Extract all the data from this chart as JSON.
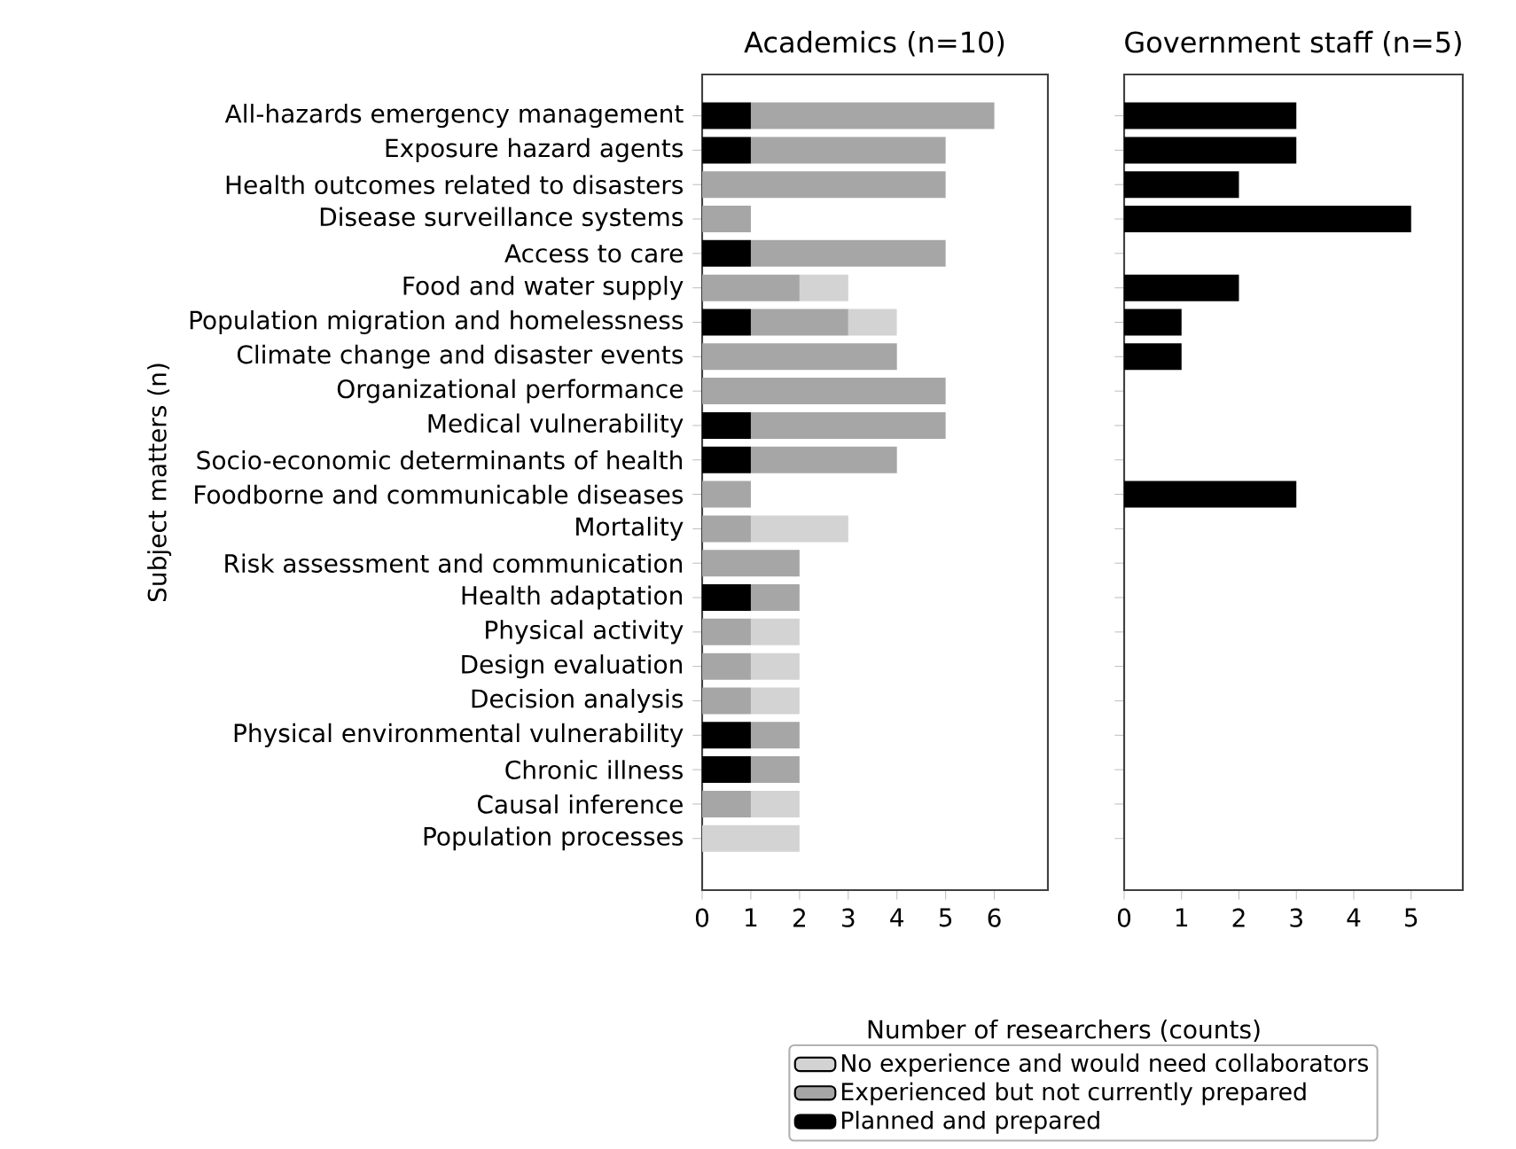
{
  "chart_data": [
    {
      "type": "bar",
      "orientation": "horizontal",
      "stacked": true,
      "title": "Academics (n=10)",
      "xlabel": "Number of researchers (counts)",
      "ylabel": "Subject matters (n)",
      "categories": [
        "All-hazards emergency management",
        "Exposure hazard agents",
        "Health outcomes related to disasters",
        "Disease surveillance systems",
        "Access to care",
        "Food and water supply",
        "Population migration and homelessness",
        "Climate change and disaster events",
        "Organizational performance",
        "Medical vulnerability",
        "Socio-economic determinants of health",
        "Foodborne and communicable diseases",
        "Mortality",
        "Risk assessment and communication",
        "Health adaptation",
        "Physical activity",
        "Design evaluation",
        "Decision analysis",
        "Physical environmental vulnerability",
        "Chronic illness",
        "Causal inference",
        "Population processes"
      ],
      "series": [
        {
          "name": "Planned and prepared",
          "color": "#000000",
          "values": [
            1,
            1,
            0,
            0,
            1,
            0,
            1,
            0,
            0,
            1,
            1,
            0,
            0,
            0,
            1,
            0,
            0,
            0,
            1,
            1,
            0,
            0
          ]
        },
        {
          "name": "Experienced but not currently prepared",
          "color": "#a6a6a6",
          "values": [
            5,
            4,
            5,
            1,
            4,
            2,
            2,
            4,
            5,
            4,
            3,
            1,
            1,
            2,
            1,
            1,
            1,
            1,
            1,
            1,
            1,
            0
          ]
        },
        {
          "name": "No experience and would need collaborators",
          "color": "#d3d3d3",
          "values": [
            0,
            0,
            0,
            0,
            0,
            1,
            1,
            0,
            0,
            0,
            0,
            0,
            2,
            0,
            0,
            1,
            1,
            1,
            0,
            0,
            1,
            2
          ]
        }
      ],
      "xlim": [
        0,
        7.1
      ],
      "xticks": [
        0,
        1,
        2,
        3,
        4,
        5,
        6
      ],
      "legend": "bottom"
    },
    {
      "type": "bar",
      "orientation": "horizontal",
      "title": "Government staff (n=5)",
      "categories": [
        null,
        null,
        null,
        null,
        null,
        null,
        null,
        null,
        null,
        null,
        null,
        null,
        null,
        null,
        null,
        null,
        null,
        null,
        null,
        null,
        null,
        null
      ],
      "series": [
        {
          "color": "#000000",
          "values": [
            3,
            3,
            2,
            5,
            0,
            2,
            1,
            1,
            0,
            0,
            0,
            3,
            0,
            0,
            0,
            0,
            0,
            0,
            0,
            0,
            0,
            0
          ]
        }
      ],
      "xlim": [
        0,
        5.9
      ],
      "xticks": [
        0,
        1,
        2,
        3,
        4,
        5
      ],
      "tick_labels": "x"
    }
  ]
}
